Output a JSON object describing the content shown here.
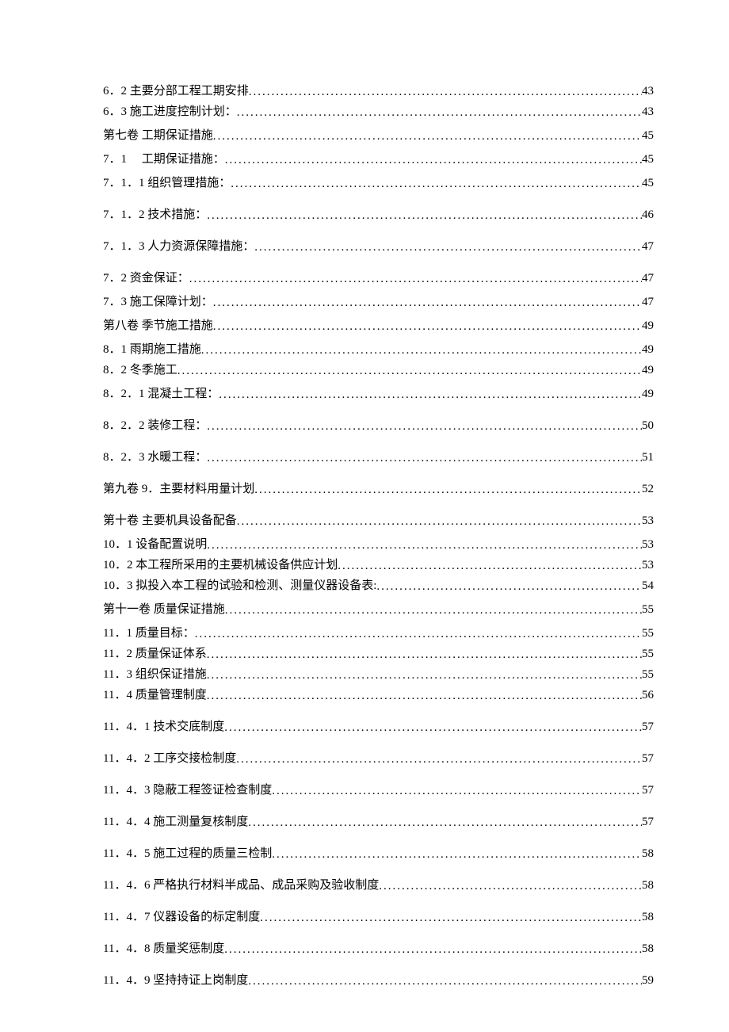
{
  "entries": [
    {
      "title": "6．2 主要分部工程工期安排",
      "page": "43",
      "gap": "none"
    },
    {
      "title": "6．3 施工进度控制计划：",
      "page": "43",
      "gap": "none"
    },
    {
      "title": "第七卷 工期保证措施",
      "page": "45",
      "gap": "small"
    },
    {
      "title": "7．1　 工期保证措施：",
      "page": "45",
      "gap": "small"
    },
    {
      "title": "7．1．1 组织管理措施：",
      "page": "45",
      "gap": "small"
    },
    {
      "title": "7．1．2 技术措施：",
      "page": "46",
      "gap": "group"
    },
    {
      "title": "7．1．3 人力资源保障措施：",
      "page": "47",
      "gap": "group"
    },
    {
      "title": "7．2 资金保证：",
      "page": "47",
      "gap": "group"
    },
    {
      "title": "7．3 施工保障计划：",
      "page": "47",
      "gap": "small"
    },
    {
      "title": "第八卷 季节施工措施",
      "page": "49",
      "gap": "small"
    },
    {
      "title": "8．1 雨期施工措施",
      "page": "49",
      "gap": "small"
    },
    {
      "title": "8．2 冬季施工",
      "page": "49",
      "gap": "none"
    },
    {
      "title": "8．2．1 混凝土工程：",
      "page": "49",
      "gap": "small"
    },
    {
      "title": "8．2．2 装修工程：",
      "page": "50",
      "gap": "group"
    },
    {
      "title": "8．2．3 水暖工程：",
      "page": "51",
      "gap": "group"
    },
    {
      "title": "第九卷 9．主要材料用量计划",
      "page": "52",
      "gap": "group"
    },
    {
      "title": "第十卷 主要机具设备配备",
      "page": "53",
      "gap": "group"
    },
    {
      "title": "10．1 设备配置说明",
      "page": "53",
      "gap": "small"
    },
    {
      "title": "10．2 本工程所采用的主要机械设备供应计划",
      "page": "53",
      "gap": "none"
    },
    {
      "title": "10．3 拟投入本工程的试验和检测、测量仪器设备表:",
      "page": "54",
      "gap": "none"
    },
    {
      "title": "第十一卷 质量保证措施",
      "page": "55",
      "gap": "small"
    },
    {
      "title": "11．1 质量目标：",
      "page": "55",
      "gap": "small"
    },
    {
      "title": "11．2 质量保证体系",
      "page": "55",
      "gap": "none"
    },
    {
      "title": "11．3 组织保证措施",
      "page": "55",
      "gap": "none"
    },
    {
      "title": "11．4 质量管理制度",
      "page": "56",
      "gap": "none"
    },
    {
      "title": "11．4．1 技术交底制度",
      "page": "57",
      "gap": "group"
    },
    {
      "title": "11．4．2 工序交接检制度",
      "page": "57",
      "gap": "group"
    },
    {
      "title": "11．4．3 隐蔽工程签证检查制度",
      "page": "57",
      "gap": "group"
    },
    {
      "title": "11．4．4 施工测量复核制度",
      "page": "57",
      "gap": "group"
    },
    {
      "title": "11．4．5 施工过程的质量三检制",
      "page": "58",
      "gap": "group"
    },
    {
      "title": "11．4．6 严格执行材料半成品、成品采购及验收制度",
      "page": "58",
      "gap": "group"
    },
    {
      "title": "11．4．7 仪器设备的标定制度",
      "page": "58",
      "gap": "group"
    },
    {
      "title": "11．4．8 质量奖惩制度",
      "page": "58",
      "gap": "group"
    },
    {
      "title": "11．4．9 坚持持证上岗制度",
      "page": "59",
      "gap": "group"
    }
  ]
}
